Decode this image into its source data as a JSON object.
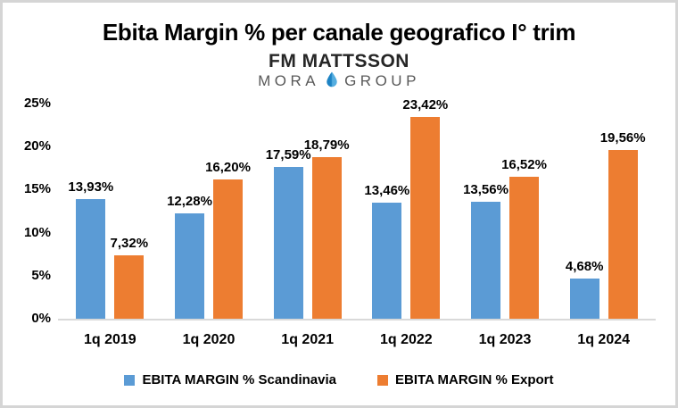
{
  "title": "Ebita Margin % per canale geografico I° trim",
  "logo": {
    "line1": "FM MATTSSON",
    "line2_left": "MORA",
    "line2_right": "GROUP",
    "line1_color": "#262626",
    "line2_color": "#595959",
    "drop_color_dark": "#1d83c4",
    "drop_color_light": "#55aee0"
  },
  "frame": {
    "border_color": "#d5d5d5",
    "background": "#ffffff",
    "axis_line_color": "#d9d9d9"
  },
  "chart_data": {
    "type": "bar",
    "title": "Ebita Margin % per canale geografico I° trim",
    "categories": [
      "1q 2019",
      "1q 2020",
      "1q 2021",
      "1q 2022",
      "1q 2023",
      "1q 2024"
    ],
    "series": [
      {
        "name": "EBITA MARGIN % Scandinavia",
        "color": "#5b9bd5",
        "values": [
          13.93,
          12.28,
          17.59,
          13.46,
          13.56,
          4.68
        ],
        "labels": [
          "13,93%",
          "12,28%",
          "17,59%",
          "13,46%",
          "13,56%",
          "4,68%"
        ]
      },
      {
        "name": "EBITA MARGIN % Export",
        "color": "#ed7d31",
        "values": [
          7.32,
          16.2,
          18.79,
          23.42,
          16.52,
          19.56
        ],
        "labels": [
          "7,32%",
          "16,20%",
          "18,79%",
          "23,42%",
          "16,52%",
          "19,56%"
        ]
      }
    ],
    "y_axis": {
      "min": 0,
      "max": 25,
      "step": 5,
      "ticks": [
        "0%",
        "5%",
        "10%",
        "15%",
        "20%",
        "25%"
      ]
    },
    "xlabel": "",
    "ylabel": "",
    "grid": false,
    "legend_position": "bottom"
  }
}
